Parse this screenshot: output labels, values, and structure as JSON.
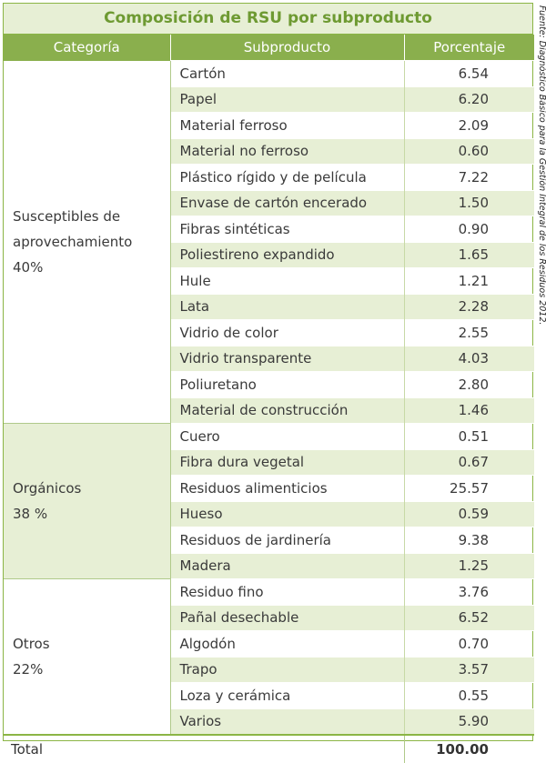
{
  "title": "Composición de RSU por subproducto",
  "headers": {
    "category": "Categoría",
    "subproduct": "Subproducto",
    "percent": "Porcentaje"
  },
  "categories": [
    {
      "name": "Susceptibles de aprovechamiento",
      "share": "40%"
    },
    {
      "name": "Orgánicos",
      "share": "38 %"
    },
    {
      "name": "Otros",
      "share": "22%"
    }
  ],
  "rows": [
    {
      "name": "Cartón",
      "value": "6.54"
    },
    {
      "name": "Papel",
      "value": "6.20"
    },
    {
      "name": "Material ferroso",
      "value": "2.09"
    },
    {
      "name": "Material no ferroso",
      "value": "0.60"
    },
    {
      "name": "Plástico rígido y de película",
      "value": "7.22"
    },
    {
      "name": "Envase de cartón encerado",
      "value": "1.50"
    },
    {
      "name": "Fibras sintéticas",
      "value": "0.90"
    },
    {
      "name": "Poliestireno expandido",
      "value": "1.65"
    },
    {
      "name": "Hule",
      "value": "1.21"
    },
    {
      "name": "Lata",
      "value": "2.28"
    },
    {
      "name": "Vidrio de color",
      "value": "2.55"
    },
    {
      "name": "Vidrio transparente",
      "value": "4.03"
    },
    {
      "name": "Poliuretano",
      "value": "2.80"
    },
    {
      "name": "Material de construcción",
      "value": "1.46"
    },
    {
      "name": "Cuero",
      "value": "0.51"
    },
    {
      "name": "Fibra dura vegetal",
      "value": "0.67"
    },
    {
      "name": "Residuos alimenticios",
      "value": "25.57"
    },
    {
      "name": "Hueso",
      "value": "0.59"
    },
    {
      "name": "Residuos de jardinería",
      "value": "9.38"
    },
    {
      "name": "Madera",
      "value": "1.25"
    },
    {
      "name": "Residuo fino",
      "value": "3.76"
    },
    {
      "name": "Pañal desechable",
      "value": "6.52"
    },
    {
      "name": "Algodón",
      "value": "0.70"
    },
    {
      "name": "Trapo",
      "value": "3.57"
    },
    {
      "name": "Loza y cerámica",
      "value": "0.55"
    },
    {
      "name": "Varios",
      "value": "5.90"
    }
  ],
  "total": {
    "label": "Total",
    "value": "100.00"
  },
  "source": "Fuente: Diagnóstico Básico para la Gestión Integral de los Residuos 2012.",
  "colors": {
    "header": "#8aaf4d",
    "band": "#e7efd5",
    "title_text": "#6e9a32",
    "border": "#8bb545"
  }
}
